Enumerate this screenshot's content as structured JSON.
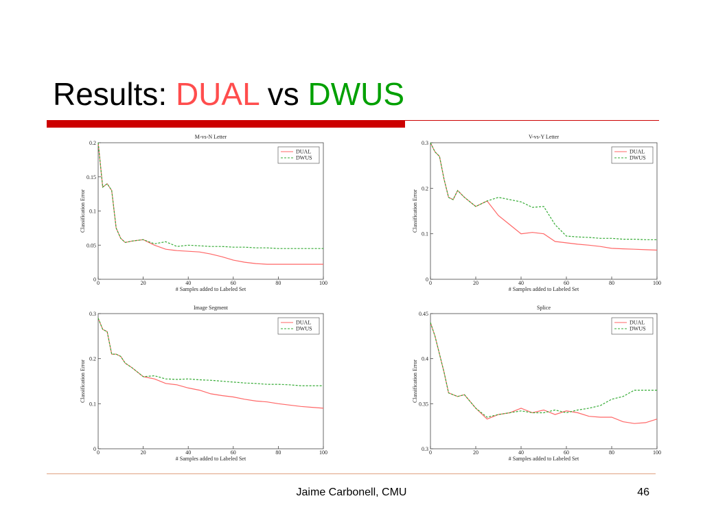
{
  "slide": {
    "title": "Results:",
    "title_dual": "DUAL",
    "title_vs": "vs",
    "title_dwus": "DWUS",
    "footer": "Jaime Carbonell, CMU",
    "page": "46"
  },
  "chart_data": [
    {
      "type": "line",
      "title": "M-vs-N Letter",
      "xlabel": "# Samples added to Labeled Set",
      "ylabel": "Classification Error",
      "x": [
        0,
        2,
        4,
        6,
        8,
        10,
        12,
        15,
        20,
        25,
        30,
        35,
        40,
        45,
        50,
        55,
        60,
        65,
        70,
        75,
        80,
        85,
        90,
        95,
        100
      ],
      "xlim": [
        0,
        100
      ],
      "xticks": [
        0,
        20,
        40,
        60,
        80,
        100
      ],
      "ylim": [
        0,
        0.2
      ],
      "yticks": [
        0,
        0.05,
        0.1,
        0.15,
        0.2
      ],
      "legend": "upper right",
      "series": [
        {
          "name": "DUAL",
          "color": "#ff6666",
          "dashed": false,
          "values": [
            0.2,
            0.135,
            0.14,
            0.13,
            0.075,
            0.06,
            0.054,
            0.056,
            0.058,
            0.05,
            0.044,
            0.042,
            0.041,
            0.04,
            0.037,
            0.033,
            0.028,
            0.025,
            0.023,
            0.022,
            0.022,
            0.022,
            0.022,
            0.022,
            0.022
          ]
        },
        {
          "name": "DWUS",
          "color": "#33aa33",
          "dashed": true,
          "values": [
            0.2,
            0.135,
            0.14,
            0.13,
            0.075,
            0.06,
            0.054,
            0.056,
            0.058,
            0.052,
            0.055,
            0.048,
            0.05,
            0.049,
            0.048,
            0.048,
            0.047,
            0.047,
            0.046,
            0.046,
            0.045,
            0.045,
            0.045,
            0.045,
            0.045
          ]
        }
      ]
    },
    {
      "type": "line",
      "title": "V-vs-Y Letter",
      "xlabel": "# Samples added to Labeled Set",
      "ylabel": "Classification Error",
      "x": [
        0,
        2,
        4,
        6,
        8,
        10,
        12,
        15,
        20,
        25,
        30,
        35,
        40,
        45,
        50,
        55,
        60,
        65,
        70,
        75,
        80,
        85,
        90,
        95,
        100
      ],
      "xlim": [
        0,
        100
      ],
      "xticks": [
        0,
        20,
        40,
        60,
        80,
        100
      ],
      "ylim": [
        0,
        0.3
      ],
      "yticks": [
        0,
        0.1,
        0.2,
        0.3
      ],
      "legend": "upper right",
      "series": [
        {
          "name": "DUAL",
          "color": "#ff6666",
          "dashed": false,
          "values": [
            0.3,
            0.28,
            0.27,
            0.22,
            0.18,
            0.175,
            0.195,
            0.18,
            0.16,
            0.172,
            0.14,
            0.12,
            0.1,
            0.103,
            0.1,
            0.083,
            0.08,
            0.077,
            0.075,
            0.072,
            0.068,
            0.067,
            0.066,
            0.065,
            0.064
          ]
        },
        {
          "name": "DWUS",
          "color": "#33aa33",
          "dashed": true,
          "values": [
            0.3,
            0.28,
            0.27,
            0.22,
            0.18,
            0.175,
            0.195,
            0.18,
            0.16,
            0.172,
            0.18,
            0.175,
            0.17,
            0.158,
            0.16,
            0.12,
            0.095,
            0.093,
            0.092,
            0.09,
            0.09,
            0.088,
            0.088,
            0.087,
            0.087
          ]
        }
      ]
    },
    {
      "type": "line",
      "title": "Image Segment",
      "xlabel": "# Samples added to Labeled Set",
      "ylabel": "Classification Error",
      "x": [
        0,
        2,
        4,
        6,
        8,
        10,
        12,
        15,
        20,
        25,
        30,
        35,
        40,
        45,
        50,
        55,
        60,
        65,
        70,
        75,
        80,
        85,
        90,
        95,
        100
      ],
      "xlim": [
        0,
        100
      ],
      "xticks": [
        0,
        20,
        40,
        60,
        80,
        100
      ],
      "ylim": [
        0,
        0.3
      ],
      "yticks": [
        0,
        0.1,
        0.2,
        0.3
      ],
      "legend": "upper right",
      "series": [
        {
          "name": "DUAL",
          "color": "#ff6666",
          "dashed": false,
          "values": [
            0.29,
            0.265,
            0.26,
            0.21,
            0.21,
            0.205,
            0.19,
            0.18,
            0.16,
            0.155,
            0.145,
            0.142,
            0.135,
            0.13,
            0.122,
            0.118,
            0.115,
            0.11,
            0.106,
            0.104,
            0.1,
            0.097,
            0.094,
            0.092,
            0.09
          ]
        },
        {
          "name": "DWUS",
          "color": "#33aa33",
          "dashed": true,
          "values": [
            0.29,
            0.265,
            0.26,
            0.21,
            0.21,
            0.205,
            0.19,
            0.18,
            0.16,
            0.162,
            0.155,
            0.154,
            0.155,
            0.153,
            0.152,
            0.15,
            0.148,
            0.146,
            0.145,
            0.143,
            0.143,
            0.142,
            0.14,
            0.14,
            0.14
          ]
        }
      ]
    },
    {
      "type": "line",
      "title": "Splice",
      "xlabel": "# Samples added to Labeled Set",
      "ylabel": "Classification Error",
      "x": [
        0,
        2,
        4,
        6,
        8,
        10,
        12,
        15,
        20,
        25,
        30,
        35,
        40,
        45,
        50,
        55,
        60,
        65,
        70,
        75,
        80,
        85,
        90,
        95,
        100
      ],
      "xlim": [
        0,
        100
      ],
      "xticks": [
        0,
        20,
        40,
        60,
        80,
        100
      ],
      "ylim": [
        0.3,
        0.45
      ],
      "yticks": [
        0.3,
        0.35,
        0.4,
        0.45
      ],
      "legend": "upper right",
      "series": [
        {
          "name": "DUAL",
          "color": "#ff6666",
          "dashed": false,
          "values": [
            0.44,
            0.425,
            0.405,
            0.385,
            0.362,
            0.36,
            0.358,
            0.36,
            0.345,
            0.333,
            0.338,
            0.34,
            0.345,
            0.34,
            0.343,
            0.338,
            0.342,
            0.34,
            0.336,
            0.335,
            0.335,
            0.33,
            0.328,
            0.329,
            0.333
          ]
        },
        {
          "name": "DWUS",
          "color": "#33aa33",
          "dashed": true,
          "values": [
            0.44,
            0.425,
            0.405,
            0.385,
            0.362,
            0.36,
            0.358,
            0.36,
            0.345,
            0.335,
            0.338,
            0.34,
            0.342,
            0.34,
            0.34,
            0.343,
            0.34,
            0.343,
            0.345,
            0.348,
            0.355,
            0.358,
            0.365,
            0.365,
            0.365
          ]
        }
      ]
    }
  ]
}
